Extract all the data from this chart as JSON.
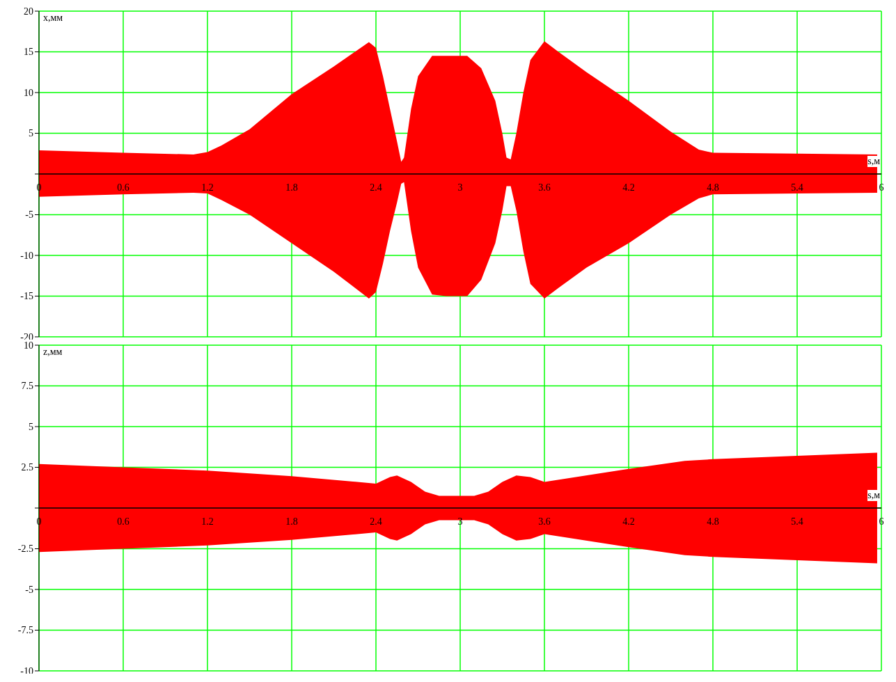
{
  "chart_data": [
    {
      "type": "area",
      "xlabel": "s,м",
      "ylabel": "x,мм",
      "xlim": [
        0,
        6
      ],
      "xticks": [
        0,
        0.6,
        1.2,
        1.8,
        2.4,
        3,
        3.6,
        4.2,
        4.8,
        5.4,
        6
      ],
      "ylim": [
        -20,
        20
      ],
      "yticks": [
        -20,
        -15,
        -10,
        -5,
        {
          "value": 0,
          "label": null
        },
        5,
        10,
        15,
        20
      ],
      "grid": true,
      "series": [
        {
          "color": "#ff0000",
          "x": [
            0,
            0.6,
            1.1,
            1.2,
            1.3,
            1.5,
            1.8,
            2.1,
            2.35,
            2.4,
            2.45,
            2.5,
            2.55,
            2.58,
            2.6,
            2.65,
            2.7,
            2.8,
            2.9,
            3.05,
            3.15,
            3.25,
            3.3,
            3.33,
            3.36,
            3.4,
            3.45,
            3.5,
            3.6,
            3.7,
            3.9,
            4.2,
            4.5,
            4.7,
            4.8,
            5.4,
            5.97
          ],
          "values": [
            2.9,
            2.6,
            2.4,
            2.7,
            3.5,
            5.5,
            9.8,
            13.2,
            16.2,
            15.5,
            12,
            8,
            4,
            1.5,
            2,
            8,
            12,
            14.5,
            14.5,
            14.5,
            13,
            9,
            5,
            2,
            1.8,
            5,
            10,
            14,
            16.3,
            15,
            12.5,
            9,
            5.2,
            3,
            2.6,
            2.5,
            2.4
          ]
        },
        {
          "color": "#ff0000",
          "x": [
            0,
            0.6,
            1.1,
            1.2,
            1.3,
            1.5,
            1.8,
            2.1,
            2.35,
            2.4,
            2.45,
            2.5,
            2.55,
            2.58,
            2.6,
            2.65,
            2.7,
            2.8,
            2.9,
            3.05,
            3.15,
            3.25,
            3.3,
            3.33,
            3.36,
            3.4,
            3.45,
            3.5,
            3.6,
            3.7,
            3.9,
            4.2,
            4.5,
            4.7,
            4.8,
            5.4,
            5.97
          ],
          "values": [
            -2.8,
            -2.5,
            -2.3,
            -2.4,
            -3.2,
            -5,
            -8.5,
            -12,
            -15.3,
            -14.5,
            -11,
            -7,
            -3.5,
            -1.2,
            -1,
            -7,
            -11.5,
            -14.8,
            -15,
            -15,
            -13,
            -8.5,
            -4.5,
            -1.5,
            -1.5,
            -4.5,
            -9.5,
            -13.5,
            -15.3,
            -14,
            -11.5,
            -8.5,
            -5,
            -3,
            -2.5,
            -2.4,
            -2.3
          ]
        }
      ]
    },
    {
      "type": "area",
      "xlabel": "s,м",
      "ylabel": "z,мм",
      "xlim": [
        0,
        6
      ],
      "xticks": [
        0,
        0.6,
        1.2,
        1.8,
        2.4,
        3,
        3.6,
        4.2,
        4.8,
        5.4,
        6
      ],
      "ylim": [
        -10,
        10
      ],
      "yticks": [
        -10,
        -7.5,
        -5,
        -2.5,
        {
          "value": 0,
          "label": null
        },
        2.5,
        5,
        7.5,
        10
      ],
      "grid": true,
      "series": [
        {
          "color": "#ff0000",
          "x": [
            0,
            0.6,
            1.2,
            1.8,
            2.4,
            2.5,
            2.55,
            2.65,
            2.75,
            2.85,
            3.1,
            3.2,
            3.3,
            3.4,
            3.5,
            3.6,
            4.2,
            4.6,
            4.8,
            5.4,
            5.97
          ],
          "values": [
            2.7,
            2.5,
            2.3,
            1.95,
            1.5,
            1.9,
            2,
            1.6,
            1,
            0.75,
            0.75,
            1,
            1.6,
            2,
            1.9,
            1.6,
            2.4,
            2.9,
            3,
            3.2,
            3.4
          ]
        },
        {
          "color": "#ff0000",
          "x": [
            0,
            0.6,
            1.2,
            1.8,
            2.4,
            2.5,
            2.55,
            2.65,
            2.75,
            2.85,
            3.1,
            3.2,
            3.3,
            3.4,
            3.5,
            3.6,
            4.2,
            4.6,
            4.8,
            5.4,
            5.97
          ],
          "values": [
            -2.7,
            -2.5,
            -2.3,
            -1.95,
            -1.5,
            -1.9,
            -2,
            -1.6,
            -1,
            -0.75,
            -0.75,
            -1,
            -1.6,
            -2,
            -1.9,
            -1.6,
            -2.4,
            -2.9,
            -3,
            -3.2,
            -3.4
          ]
        }
      ]
    }
  ]
}
